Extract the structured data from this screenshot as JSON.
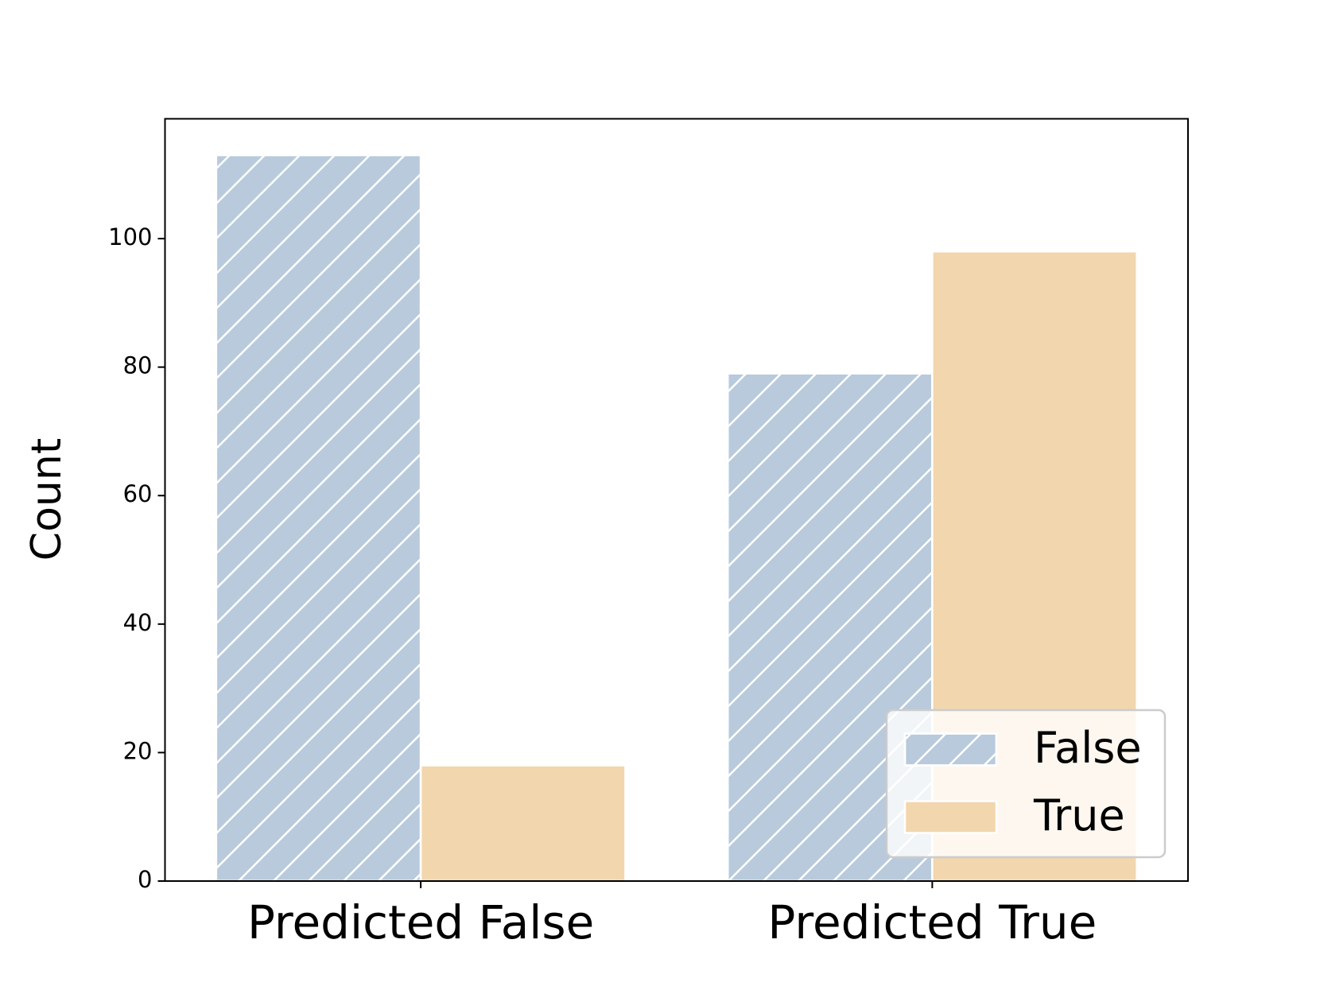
{
  "chart_data": {
    "type": "bar",
    "ylabel": "Count",
    "categories": [
      "Predicted False",
      "Predicted True"
    ],
    "series": [
      {
        "name": "False",
        "color": "#b8cadc",
        "hatch": "//",
        "values": [
          113,
          79
        ]
      },
      {
        "name": "True",
        "color": "#f2d6ae",
        "values": [
          18,
          98
        ]
      }
    ],
    "ylim": [
      0,
      118.65
    ],
    "yticks": [
      0,
      20,
      40,
      60,
      80,
      100
    ],
    "legend": "lower right"
  }
}
